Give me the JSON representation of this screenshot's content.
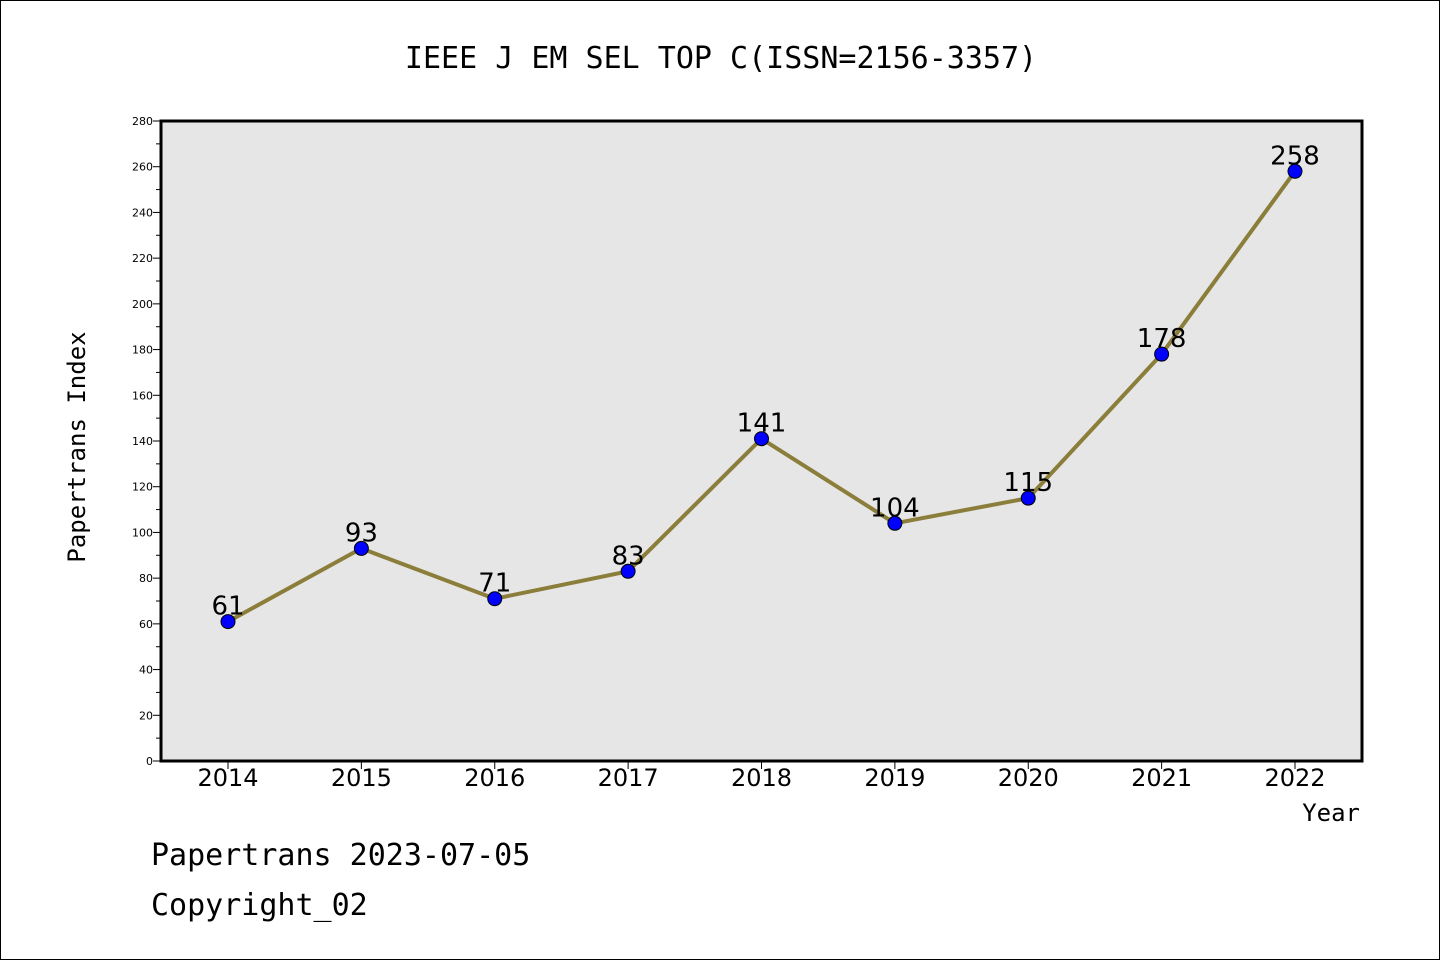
{
  "chart_data": {
    "type": "line",
    "title": "IEEE J EM SEL TOP C(ISSN=2156-3357)",
    "xlabel": "Year",
    "ylabel": "Papertrans Index",
    "categories": [
      "2014",
      "2015",
      "2016",
      "2017",
      "2018",
      "2019",
      "2020",
      "2021",
      "2022"
    ],
    "series": [
      {
        "values": [
          61,
          93,
          71,
          83,
          141,
          104,
          115,
          178,
          258
        ]
      }
    ],
    "data_labels": [
      "61",
      "93",
      "71",
      "83",
      "141",
      "104",
      "115",
      "178",
      "258"
    ],
    "ylim": [
      0,
      280
    ],
    "yticks": [
      0,
      20,
      40,
      60,
      80,
      100,
      120,
      140,
      160,
      180,
      200,
      220,
      240,
      260,
      280
    ],
    "grid": false,
    "legend": "none",
    "colors": {
      "plot_background": "#e6e6e6",
      "line": "#8b7d3a",
      "marker": "#0000ff"
    }
  },
  "footer": {
    "date_line": "Papertrans 2023-07-05",
    "copyright_line": "Copyright_02"
  }
}
